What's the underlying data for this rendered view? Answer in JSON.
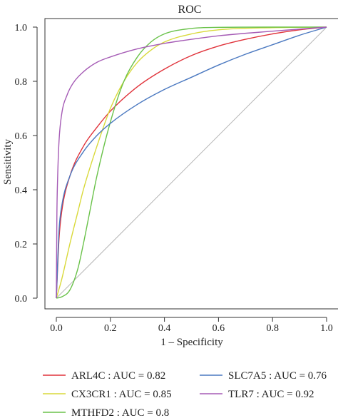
{
  "chart_data": {
    "type": "line",
    "title": "ROC",
    "xlabel": "1 – Specificity",
    "ylabel": "Sensitivity",
    "xlim": [
      0,
      1
    ],
    "ylim": [
      0,
      1
    ],
    "x_ticks": [
      "0.0",
      "0.2",
      "0.4",
      "0.6",
      "0.8",
      "1.0"
    ],
    "y_ticks": [
      "0.0",
      "0.2",
      "0.4",
      "0.6",
      "0.8",
      "1.0"
    ],
    "grid": false,
    "legend_position": "bottom",
    "diagonal_reference": true,
    "series": [
      {
        "name": "ARL4C : AUC = 0.82",
        "color": "#e0323a",
        "x": [
          0,
          0.01,
          0.02,
          0.05,
          0.1,
          0.15,
          0.2,
          0.3,
          0.4,
          0.5,
          0.6,
          0.7,
          0.8,
          0.9,
          1.0
        ],
        "y": [
          0,
          0.22,
          0.32,
          0.45,
          0.56,
          0.63,
          0.69,
          0.78,
          0.845,
          0.895,
          0.93,
          0.955,
          0.975,
          0.99,
          1.0
        ]
      },
      {
        "name": "CX3CR1 : AUC = 0.85",
        "color": "#d9d93a",
        "x": [
          0,
          0.02,
          0.05,
          0.08,
          0.1,
          0.15,
          0.2,
          0.25,
          0.3,
          0.35,
          0.4,
          0.5,
          0.6,
          0.8,
          1.0
        ],
        "y": [
          0,
          0.07,
          0.2,
          0.32,
          0.4,
          0.56,
          0.7,
          0.8,
          0.87,
          0.915,
          0.945,
          0.975,
          0.99,
          0.998,
          1.0
        ]
      },
      {
        "name": "MTHFD2 : AUC = 0.8",
        "color": "#6ac24a",
        "x": [
          0,
          0.02,
          0.05,
          0.08,
          0.1,
          0.12,
          0.15,
          0.2,
          0.25,
          0.3,
          0.35,
          0.4,
          0.5,
          0.6,
          0.8,
          1.0
        ],
        "y": [
          0,
          0.005,
          0.03,
          0.11,
          0.2,
          0.3,
          0.45,
          0.65,
          0.8,
          0.89,
          0.945,
          0.975,
          0.995,
          0.999,
          1.0,
          1.0
        ]
      },
      {
        "name": "SLC7A5 : AUC = 0.76",
        "color": "#4a78c0",
        "x": [
          0,
          0.01,
          0.02,
          0.05,
          0.1,
          0.15,
          0.2,
          0.3,
          0.4,
          0.5,
          0.6,
          0.7,
          0.8,
          0.9,
          1.0
        ],
        "y": [
          0,
          0.25,
          0.34,
          0.45,
          0.54,
          0.6,
          0.645,
          0.715,
          0.77,
          0.815,
          0.86,
          0.9,
          0.935,
          0.97,
          1.0
        ]
      },
      {
        "name": "TLR7 : AUC = 0.92",
        "color": "#a55bb5",
        "x": [
          0,
          0.002,
          0.005,
          0.01,
          0.02,
          0.04,
          0.06,
          0.1,
          0.15,
          0.2,
          0.3,
          0.4,
          0.5,
          0.6,
          0.8,
          1.0
        ],
        "y": [
          0,
          0.3,
          0.45,
          0.58,
          0.68,
          0.75,
          0.79,
          0.835,
          0.87,
          0.89,
          0.92,
          0.94,
          0.955,
          0.968,
          0.985,
          1.0
        ]
      }
    ]
  }
}
